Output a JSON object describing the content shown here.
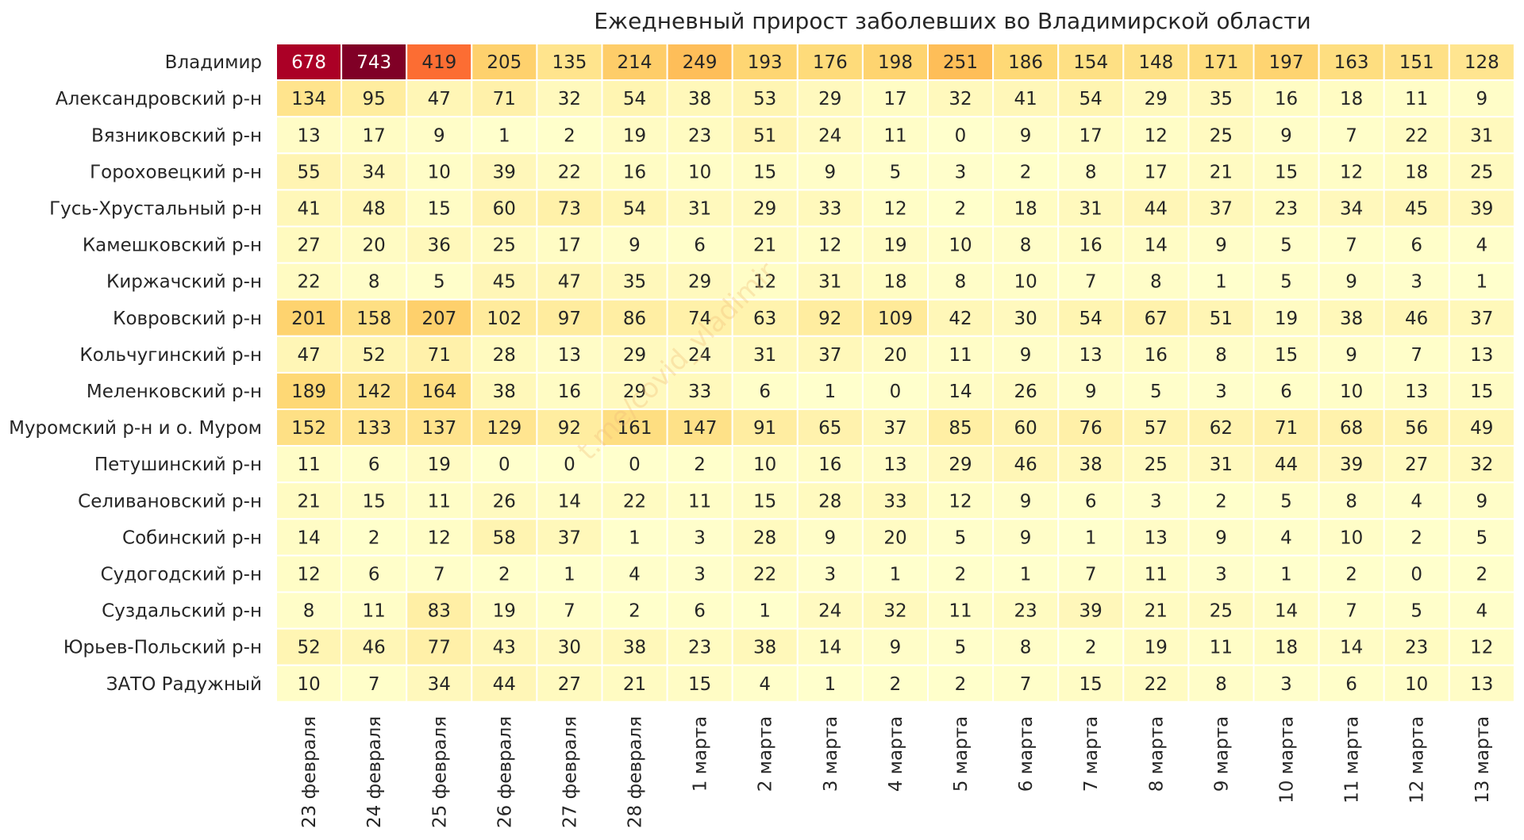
{
  "chart_data": {
    "type": "heatmap",
    "title": "Ежедневный прирост заболевших во Владимирской области",
    "xlabel": "",
    "ylabel": "",
    "colorscale": [
      "#ffffcc",
      "#ffeda0",
      "#fed976",
      "#feb24c",
      "#fd8d3c",
      "#fc4e2a",
      "#e31a1c",
      "#bd0026",
      "#800026"
    ],
    "vmin": 0,
    "vmax": 743,
    "x": [
      "23 февраля",
      "24 февраля",
      "25 февраля",
      "26 февраля",
      "27 февраля",
      "28 февраля",
      "1 марта",
      "2 марта",
      "3 марта",
      "4 марта",
      "5 марта",
      "6 марта",
      "7 марта",
      "8 марта",
      "9 марта",
      "10 марта",
      "11 марта",
      "12 марта",
      "13 марта"
    ],
    "y": [
      "Владимир",
      "Александровский р-н",
      "Вязниковский р-н",
      "Гороховецкий р-н",
      "Гусь-Хрустальный р-н",
      "Камешковский р-н",
      "Киржачский р-н",
      "Ковровский р-н",
      "Кольчугинский р-н",
      "Меленковский р-н",
      "Муромский р-н и о. Муром",
      "Петушинский р-н",
      "Селивановский р-н",
      "Собинский р-н",
      "Судогодский р-н",
      "Суздальский р-н",
      "Юрьев-Польский р-н",
      "ЗАТО Радужный"
    ],
    "values": [
      [
        678,
        743,
        419,
        205,
        135,
        214,
        249,
        193,
        176,
        198,
        251,
        186,
        154,
        148,
        171,
        197,
        163,
        151,
        128
      ],
      [
        134,
        95,
        47,
        71,
        32,
        54,
        38,
        53,
        29,
        17,
        32,
        41,
        54,
        29,
        35,
        16,
        18,
        11,
        9
      ],
      [
        13,
        17,
        9,
        1,
        2,
        19,
        23,
        51,
        24,
        11,
        0,
        9,
        17,
        12,
        25,
        9,
        7,
        22,
        31
      ],
      [
        55,
        34,
        10,
        39,
        22,
        16,
        10,
        15,
        9,
        5,
        3,
        2,
        8,
        17,
        21,
        15,
        12,
        18,
        25
      ],
      [
        41,
        48,
        15,
        60,
        73,
        54,
        31,
        29,
        33,
        12,
        2,
        18,
        31,
        44,
        37,
        23,
        34,
        45,
        39
      ],
      [
        27,
        20,
        36,
        25,
        17,
        9,
        6,
        21,
        12,
        19,
        10,
        8,
        16,
        14,
        9,
        5,
        7,
        6,
        4
      ],
      [
        22,
        8,
        5,
        45,
        47,
        35,
        29,
        12,
        31,
        18,
        8,
        10,
        7,
        8,
        1,
        5,
        9,
        3,
        1
      ],
      [
        201,
        158,
        207,
        102,
        97,
        86,
        74,
        63,
        92,
        109,
        42,
        30,
        54,
        67,
        51,
        19,
        38,
        46,
        37
      ],
      [
        47,
        52,
        71,
        28,
        13,
        29,
        24,
        31,
        37,
        20,
        11,
        9,
        13,
        16,
        8,
        15,
        9,
        7,
        13
      ],
      [
        189,
        142,
        164,
        38,
        16,
        29,
        33,
        6,
        1,
        0,
        14,
        26,
        9,
        5,
        3,
        6,
        10,
        13,
        15
      ],
      [
        152,
        133,
        137,
        129,
        92,
        161,
        147,
        91,
        65,
        37,
        85,
        60,
        76,
        57,
        62,
        71,
        68,
        56,
        49
      ],
      [
        11,
        6,
        19,
        0,
        0,
        0,
        2,
        10,
        16,
        13,
        29,
        46,
        38,
        25,
        31,
        44,
        39,
        27,
        32
      ],
      [
        21,
        15,
        11,
        26,
        14,
        22,
        11,
        15,
        28,
        33,
        12,
        9,
        6,
        3,
        2,
        5,
        8,
        4,
        9
      ],
      [
        14,
        2,
        12,
        58,
        37,
        1,
        3,
        28,
        9,
        20,
        5,
        9,
        1,
        13,
        9,
        4,
        10,
        2,
        5
      ],
      [
        12,
        6,
        7,
        2,
        1,
        4,
        3,
        22,
        3,
        1,
        2,
        1,
        7,
        11,
        3,
        1,
        2,
        0,
        2
      ],
      [
        8,
        11,
        83,
        19,
        7,
        2,
        6,
        1,
        24,
        32,
        11,
        23,
        39,
        21,
        25,
        14,
        7,
        5,
        4
      ],
      [
        52,
        46,
        77,
        43,
        30,
        38,
        23,
        38,
        14,
        9,
        5,
        8,
        2,
        19,
        11,
        18,
        14,
        23,
        12
      ],
      [
        10,
        7,
        34,
        44,
        27,
        21,
        15,
        4,
        1,
        2,
        2,
        7,
        15,
        22,
        8,
        3,
        6,
        10,
        13
      ]
    ],
    "watermark": "t.me/covid_vladimir"
  }
}
